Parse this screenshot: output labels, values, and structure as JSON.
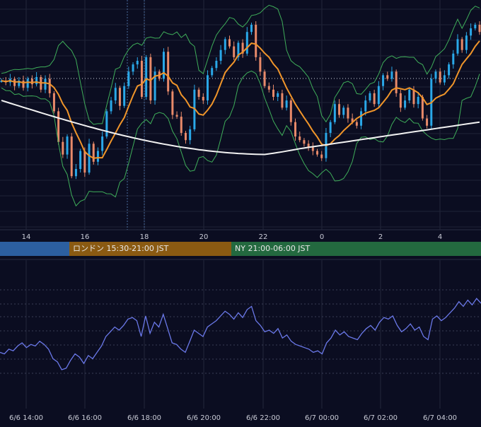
{
  "chart_data": [
    {
      "type": "candlestick",
      "x_ticks": [
        "14",
        "16",
        "18",
        "20",
        "22",
        "0",
        "2",
        "4"
      ],
      "y_range": [
        0,
        100
      ],
      "grid": true,
      "overlays": [
        "bollinger_bands",
        "moving_average_orange",
        "moving_average_white"
      ],
      "sessions": [
        {
          "label": "",
          "color": "#2c5fa0"
        },
        {
          "label": "ロンドン 15:30-21:00 JST",
          "color": "#8a5a12"
        },
        {
          "label": "NY 21:00-06:00 JST",
          "color": "#23693f"
        }
      ],
      "close_series": [
        69,
        68,
        70,
        66,
        69,
        65,
        70,
        67,
        71,
        64,
        70,
        62,
        52,
        35,
        28,
        38,
        16,
        20,
        30,
        18,
        34,
        24,
        30,
        38,
        52,
        58,
        65,
        55,
        66,
        74,
        78,
        80,
        60,
        82,
        58,
        74,
        70,
        85,
        63,
        50,
        49,
        40,
        36,
        42,
        64,
        60,
        58,
        72,
        76,
        80,
        86,
        92,
        88,
        82,
        90,
        84,
        96,
        100,
        82,
        74,
        66,
        64,
        60,
        62,
        54,
        58,
        46,
        38,
        36,
        34,
        32,
        30,
        28,
        26,
        40,
        46,
        56,
        50,
        54,
        48,
        46,
        44,
        52,
        58,
        62,
        56,
        66,
        72,
        70,
        74,
        62,
        54,
        58,
        64,
        56,
        60,
        48,
        44,
        70,
        74,
        68,
        72,
        78,
        84,
        92,
        86,
        94,
        98,
        100,
        96
      ]
    },
    {
      "type": "line",
      "x_ticks": [
        "6/6 14:00",
        "6/6 16:00",
        "6/6 18:00",
        "6/6 20:00",
        "6/6 22:00",
        "6/7 00:00",
        "6/7 02:00",
        "6/7 04:00"
      ],
      "y_range": [
        0,
        100
      ],
      "grid": true,
      "color": "#6a78e8",
      "values": [
        30,
        28,
        34,
        32,
        38,
        42,
        36,
        40,
        38,
        44,
        40,
        34,
        22,
        18,
        8,
        10,
        20,
        28,
        24,
        16,
        26,
        22,
        30,
        38,
        50,
        56,
        62,
        58,
        64,
        72,
        74,
        70,
        50,
        76,
        54,
        68,
        62,
        78,
        60,
        42,
        40,
        34,
        30,
        44,
        58,
        54,
        50,
        62,
        66,
        70,
        76,
        82,
        78,
        72,
        80,
        74,
        84,
        88,
        70,
        64,
        56,
        58,
        54,
        60,
        48,
        52,
        44,
        40,
        38,
        36,
        34,
        30,
        32,
        28,
        42,
        48,
        58,
        52,
        56,
        50,
        48,
        46,
        54,
        60,
        64,
        58,
        68,
        74,
        72,
        76,
        64,
        56,
        60,
        66,
        58,
        62,
        50,
        46,
        72,
        76,
        70,
        74,
        80,
        86,
        94,
        88,
        96,
        90,
        98,
        92
      ]
    }
  ]
}
